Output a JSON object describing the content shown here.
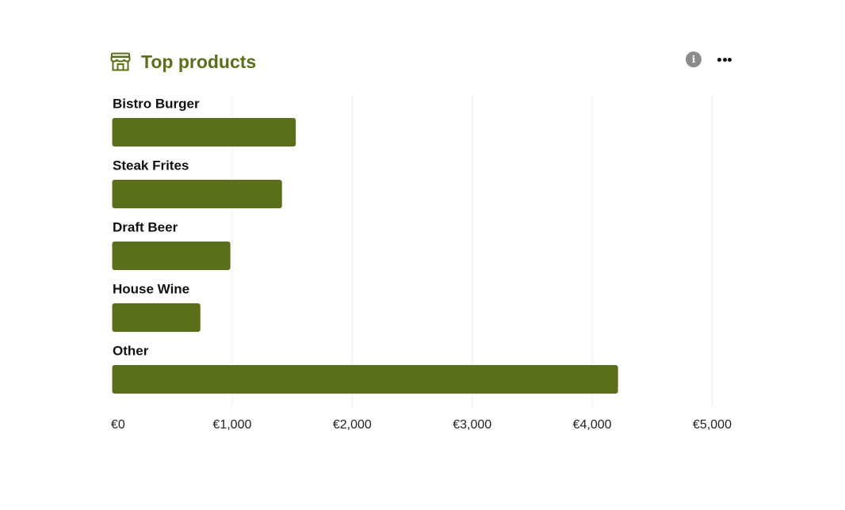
{
  "header": {
    "title": "Top products",
    "title_icon": "store-icon",
    "info_icon": "info-icon",
    "info_glyph": "i",
    "menu_icon": "more-horizontal-icon"
  },
  "colors": {
    "accent": "#5b6e1a",
    "gridline": "#ececec"
  },
  "chart_data": {
    "type": "bar",
    "orientation": "horizontal",
    "title": "Top products",
    "categories": [
      "Bistro Burger",
      "Steak Frites",
      "Draft Beer",
      "House Wine",
      "Other"
    ],
    "values": [
      1530,
      1415,
      985,
      735,
      4215
    ],
    "xlim": [
      0,
      5000
    ],
    "x_ticks": [
      0,
      1000,
      2000,
      3000,
      4000,
      5000
    ],
    "x_tick_labels": [
      "€0",
      "€1,000",
      "€2,000",
      "€3,000",
      "€4,000",
      "€5,000"
    ],
    "grid": "vertical",
    "legend": "none"
  }
}
